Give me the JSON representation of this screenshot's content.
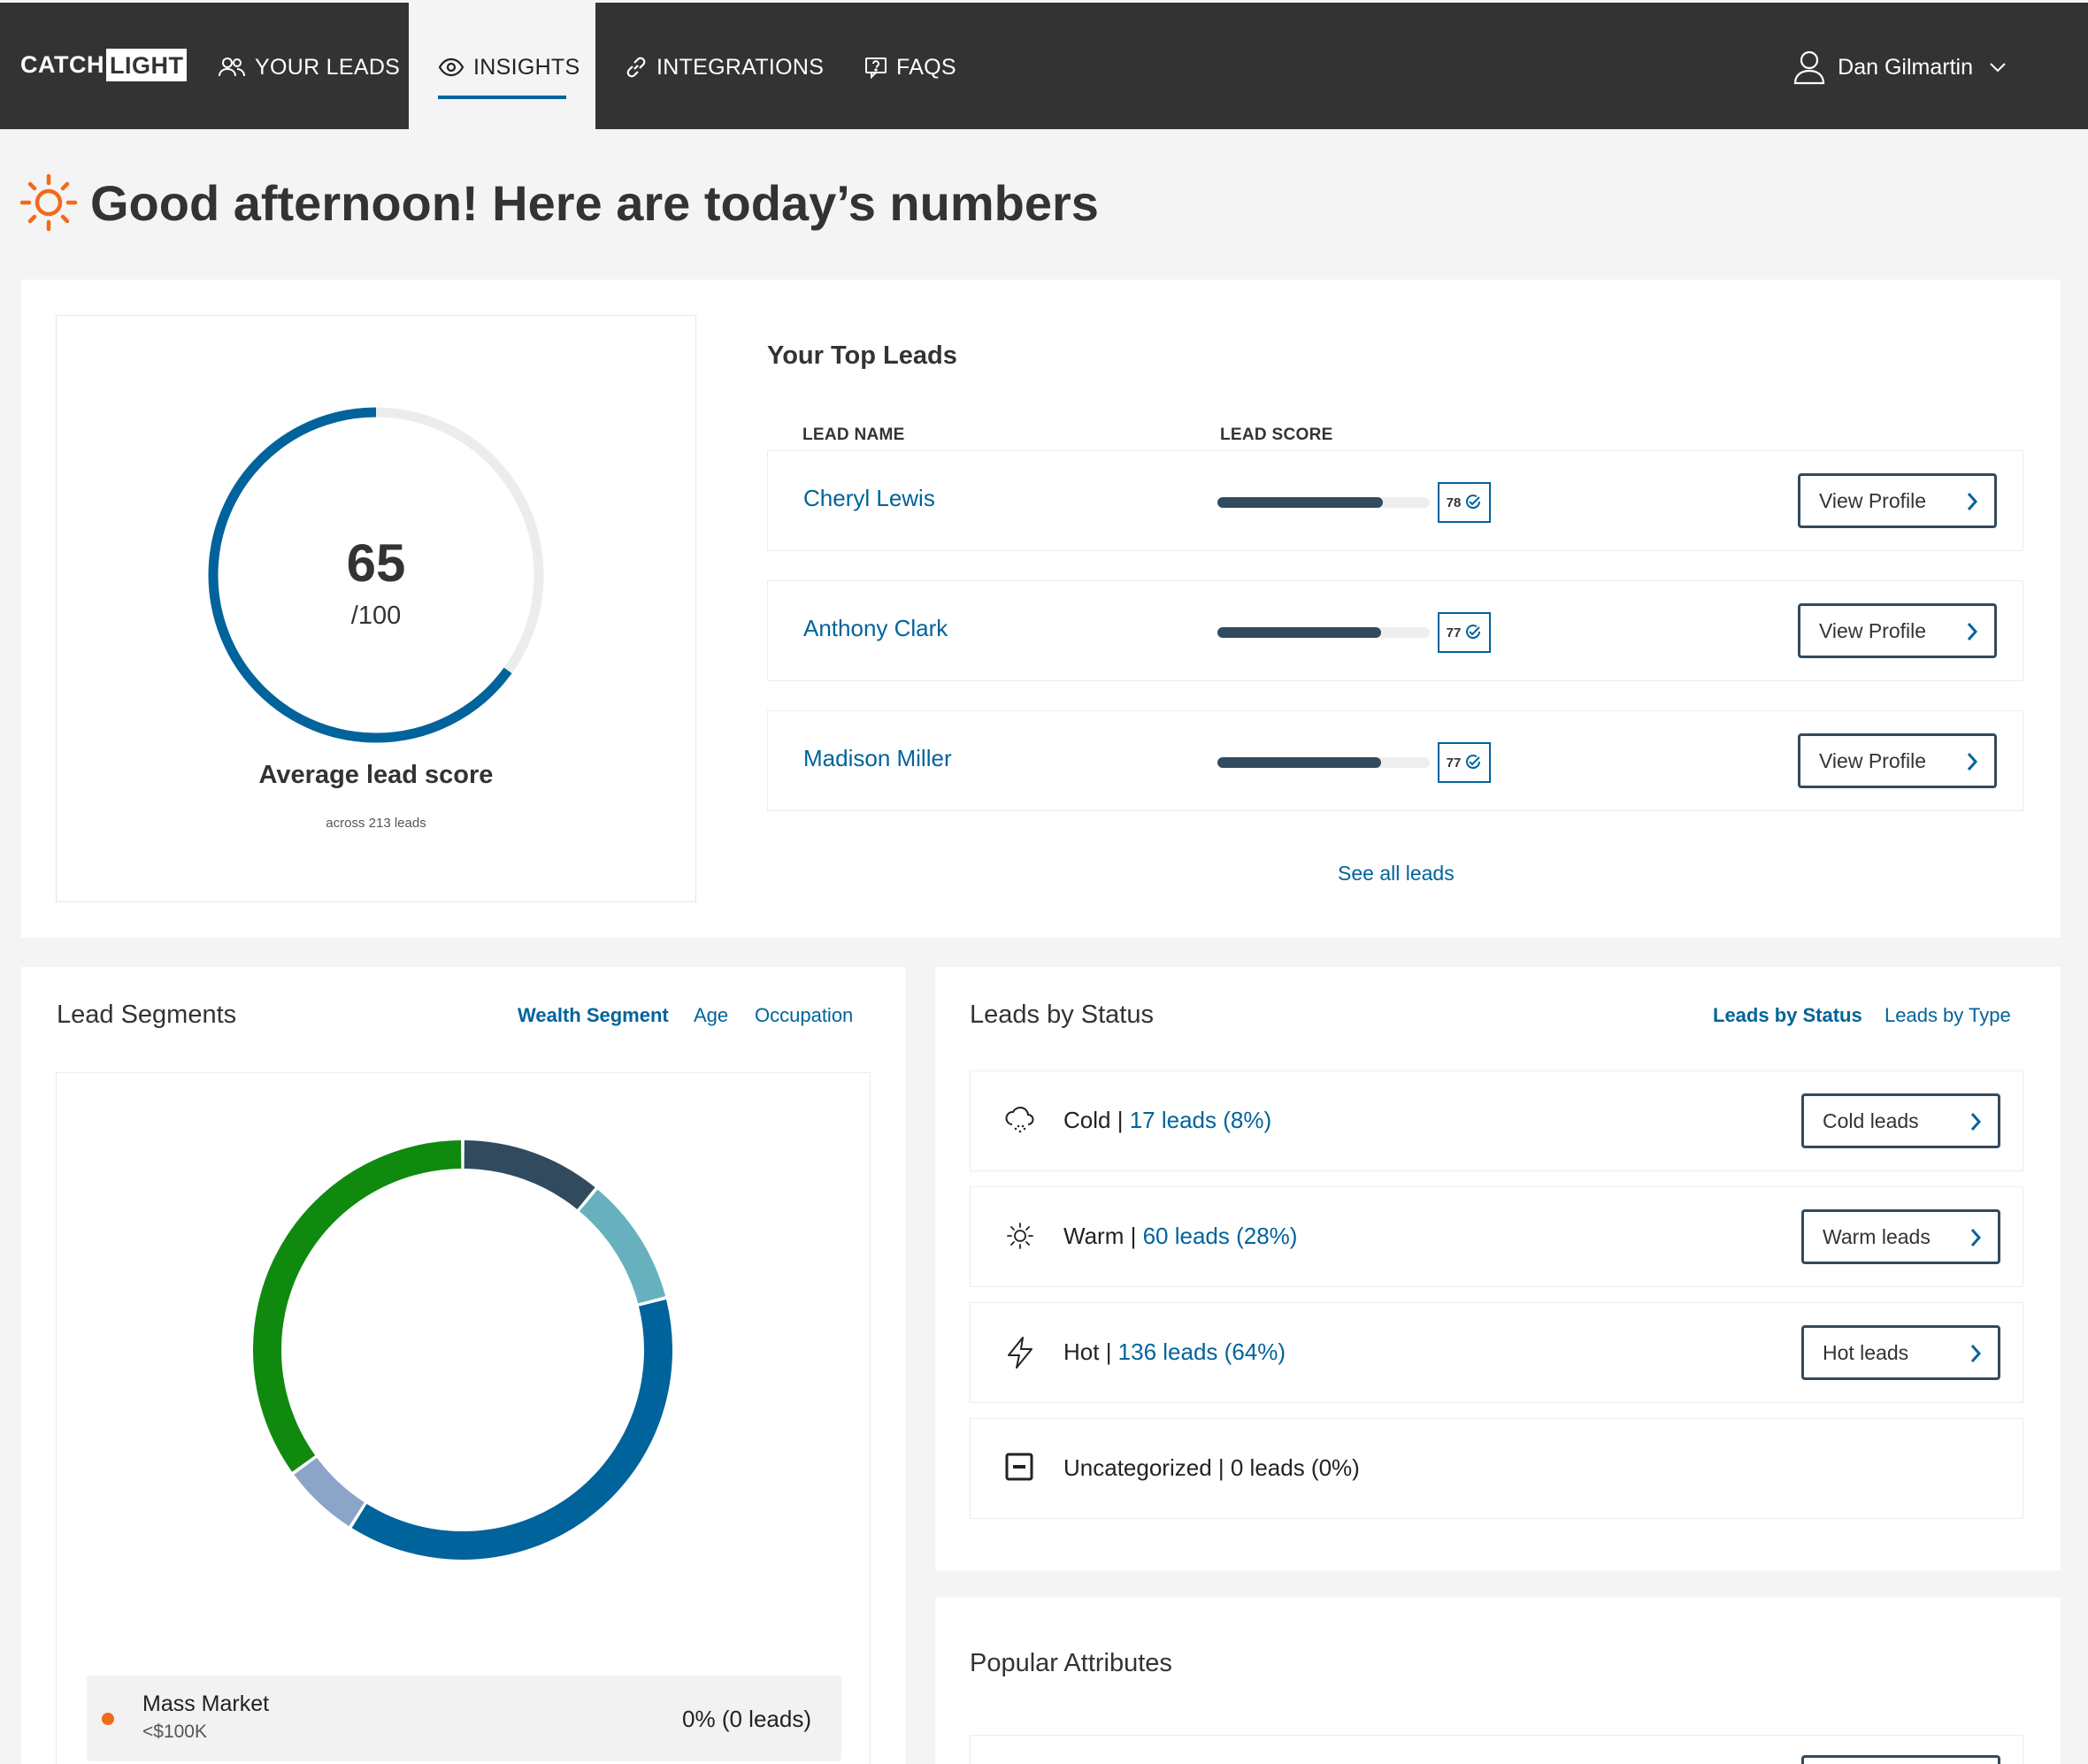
{
  "header": {
    "logo_catch": "CATCH",
    "logo_light": "LIGHT",
    "nav": [
      {
        "label": "YOUR LEADS",
        "icon": "people-icon"
      },
      {
        "label": "INSIGHTS",
        "icon": "eye-icon"
      },
      {
        "label": "INTEGRATIONS",
        "icon": "link-icon"
      },
      {
        "label": "FAQS",
        "icon": "help-chat-icon"
      }
    ],
    "user_name": "Dan Gilmartin"
  },
  "greeting": "Good afternoon! Here are today’s numbers",
  "score": {
    "value": "65",
    "denominator": "/100",
    "label": "Average lead score",
    "sub": "across 213 leads",
    "fraction": 0.65
  },
  "top_leads": {
    "title": "Your Top Leads",
    "col_name": "LEAD NAME",
    "col_score": "LEAD SCORE",
    "rows": [
      {
        "name": "Cheryl Lewis",
        "score": "78",
        "fraction": 0.78,
        "button": "View Profile"
      },
      {
        "name": "Anthony Clark",
        "score": "77",
        "fraction": 0.77,
        "button": "View Profile"
      },
      {
        "name": "Madison Miller",
        "score": "77",
        "fraction": 0.77,
        "button": "View Profile"
      }
    ],
    "see_all": "See all leads"
  },
  "segments": {
    "title": "Lead Segments",
    "tabs": [
      "Wealth Segment",
      "Age",
      "Occupation"
    ],
    "active_tab": "Wealth Segment",
    "donut_colors": [
      "#324a5e",
      "#67b1bf",
      "#00639b",
      "#8aa5c8",
      "#0f8a0f"
    ],
    "donut_fractions": [
      0.11,
      0.1,
      0.38,
      0.06,
      0.35
    ],
    "legend": [
      {
        "name": "Mass Market",
        "range": "<$100K",
        "value": "0% (0 leads)",
        "color": "#f26a1b"
      }
    ]
  },
  "status": {
    "title": "Leads by Status",
    "tabs": [
      "Leads by Status",
      "Leads by Type"
    ],
    "active_tab": "Leads by Status",
    "rows": [
      {
        "label": "Cold",
        "count": "17 leads (8%)",
        "button": "Cold leads",
        "icon": "cloud-icon"
      },
      {
        "label": "Warm",
        "count": "60 leads (28%)",
        "button": "Warm leads",
        "icon": "sun-icon"
      },
      {
        "label": "Hot",
        "count": "136 leads (64%)",
        "button": "Hot leads",
        "icon": "lightning-icon"
      },
      {
        "label": "Uncategorized",
        "count": "0 leads (0%)",
        "icon": "minus-box-icon"
      }
    ]
  },
  "attributes": {
    "title": "Popular Attributes"
  },
  "colors": {
    "header_bg": "#333333",
    "accent": "#00639b",
    "orange": "#f26a1b",
    "green": "#0f8a0f"
  }
}
